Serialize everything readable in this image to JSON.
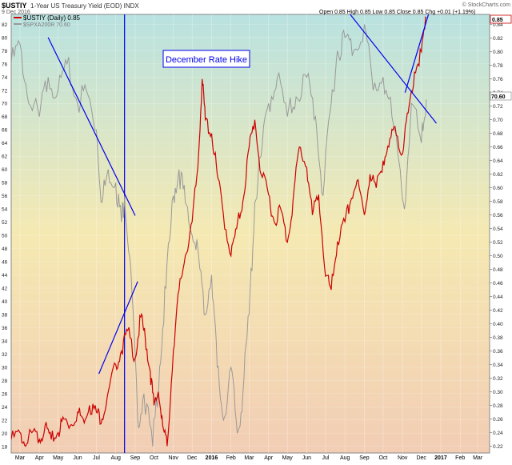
{
  "header": {
    "symbol": "$USTIY",
    "description": "1-Year US Treasury Yield (EOD) INDX",
    "date": "9 Dec 2016",
    "ohlc": "Open 0.85  High 0.85  Low 0.85  Close 0.85  Chg +0.01 (+1.19%)",
    "watermark": "© StockCharts.com"
  },
  "legend": {
    "primary": "$USTIY (Daily) 0.85",
    "secondary": "$SPXA200R 70.60"
  },
  "annotation": {
    "label": "December Rate Hike"
  },
  "price_labels": {
    "primary_last": "0.85",
    "secondary_last": "70.60"
  },
  "colors": {
    "primary_line": "#cc0000",
    "secondary_line": "#999999",
    "trendline": "#0000ee",
    "bg_top": "#b9e2e0",
    "bg_mid": "#f5e9b2",
    "bg_bottom": "#f2cdb4"
  },
  "chart_data": {
    "type": "line",
    "x_ticks": [
      "Mar",
      "Apr",
      "May",
      "Jun",
      "Jul",
      "Aug",
      "Sep",
      "Oct",
      "Nov",
      "Dec",
      "2016",
      "Feb",
      "Mar",
      "Apr",
      "May",
      "Jun",
      "Jul",
      "Aug",
      "Sep",
      "Oct",
      "Nov",
      "Dec",
      "2017",
      "Feb",
      "Mar"
    ],
    "x_range": [
      "2015-02-15",
      "2017-03-20"
    ],
    "left_axis": {
      "ticks": [
        "18",
        "20",
        "22",
        "24",
        "26",
        "28",
        "30",
        "32",
        "34",
        "36",
        "38",
        "40",
        "42",
        "44",
        "46",
        "48",
        "50",
        "52",
        "54",
        "56",
        "58",
        "60",
        "62",
        "64",
        "66",
        "68",
        "70",
        "72",
        "74",
        "76",
        "78",
        "80",
        "82"
      ],
      "range": [
        17,
        83.5
      ]
    },
    "right_axis": {
      "ticks": [
        "0.22",
        "0.24",
        "0.26",
        "0.28",
        "0.30",
        "0.32",
        "0.34",
        "0.36",
        "0.38",
        "0.40",
        "0.42",
        "0.44",
        "0.46",
        "0.48",
        "0.50",
        "0.52",
        "0.54",
        "0.56",
        "0.58",
        "0.60",
        "0.62",
        "0.64",
        "0.66",
        "0.68",
        "0.70",
        "0.72",
        "0.74",
        "0.76",
        "0.78",
        "0.80",
        "0.82",
        "0.84"
      ],
      "range": [
        0.21,
        0.855
      ]
    },
    "series": [
      {
        "name": "$USTIY (Daily) 0.85",
        "axis": "right",
        "dates": [
          "2015-02-15",
          "2015-03-01",
          "2015-03-10",
          "2015-03-20",
          "2015-04-01",
          "2015-04-10",
          "2015-04-20",
          "2015-05-01",
          "2015-05-10",
          "2015-05-20",
          "2015-06-01",
          "2015-06-10",
          "2015-06-20",
          "2015-07-01",
          "2015-07-10",
          "2015-07-20",
          "2015-08-01",
          "2015-08-10",
          "2015-08-20",
          "2015-09-01",
          "2015-09-10",
          "2015-09-17",
          "2015-09-25",
          "2015-10-01",
          "2015-10-08",
          "2015-10-15",
          "2015-10-22",
          "2015-11-01",
          "2015-11-10",
          "2015-11-20",
          "2015-12-01",
          "2015-12-10",
          "2015-12-17",
          "2015-12-22",
          "2016-01-01",
          "2016-01-10",
          "2016-01-20",
          "2016-02-01",
          "2016-02-10",
          "2016-02-20",
          "2016-03-01",
          "2016-03-10",
          "2016-03-20",
          "2016-04-01",
          "2016-04-10",
          "2016-04-20",
          "2016-05-01",
          "2016-05-10",
          "2016-05-20",
          "2016-06-01",
          "2016-06-10",
          "2016-06-20",
          "2016-07-01",
          "2016-07-10",
          "2016-07-20",
          "2016-08-01",
          "2016-08-10",
          "2016-08-20",
          "2016-09-01",
          "2016-09-10",
          "2016-09-20",
          "2016-10-01",
          "2016-10-10",
          "2016-10-20",
          "2016-11-01",
          "2016-11-10",
          "2016-11-20",
          "2016-12-01",
          "2016-12-09"
        ],
        "values": [
          0.23,
          0.24,
          0.22,
          0.24,
          0.23,
          0.25,
          0.23,
          0.24,
          0.26,
          0.25,
          0.27,
          0.26,
          0.28,
          0.27,
          0.26,
          0.3,
          0.34,
          0.36,
          0.39,
          0.35,
          0.41,
          0.38,
          0.33,
          0.28,
          0.3,
          0.25,
          0.22,
          0.36,
          0.45,
          0.5,
          0.55,
          0.63,
          0.76,
          0.7,
          0.68,
          0.62,
          0.56,
          0.5,
          0.54,
          0.58,
          0.66,
          0.7,
          0.62,
          0.59,
          0.55,
          0.57,
          0.52,
          0.58,
          0.66,
          0.63,
          0.56,
          0.59,
          0.47,
          0.45,
          0.52,
          0.55,
          0.58,
          0.61,
          0.56,
          0.62,
          0.6,
          0.64,
          0.66,
          0.69,
          0.65,
          0.71,
          0.77,
          0.8,
          0.85
        ]
      },
      {
        "name": "$SPXA200R 70.60",
        "axis": "left",
        "dates": [
          "2015-02-15",
          "2015-03-01",
          "2015-03-15",
          "2015-04-01",
          "2015-04-15",
          "2015-05-01",
          "2015-05-15",
          "2015-06-01",
          "2015-06-15",
          "2015-07-01",
          "2015-07-10",
          "2015-07-20",
          "2015-08-01",
          "2015-08-10",
          "2015-08-15",
          "2015-08-25",
          "2015-09-05",
          "2015-09-15",
          "2015-09-29",
          "2015-10-10",
          "2015-10-20",
          "2015-11-01",
          "2015-11-10",
          "2015-11-20",
          "2015-12-01",
          "2015-12-10",
          "2015-12-20",
          "2016-01-01",
          "2016-01-10",
          "2016-01-20",
          "2016-02-01",
          "2016-02-11",
          "2016-02-20",
          "2016-03-01",
          "2016-03-10",
          "2016-03-20",
          "2016-04-01",
          "2016-04-15",
          "2016-05-01",
          "2016-05-15",
          "2016-06-01",
          "2016-06-15",
          "2016-06-27",
          "2016-07-10",
          "2016-07-20",
          "2016-08-01",
          "2016-08-15",
          "2016-09-01",
          "2016-09-15",
          "2016-10-01",
          "2016-10-15",
          "2016-11-04",
          "2016-11-15",
          "2016-12-01",
          "2016-12-09"
        ],
        "values": [
          76,
          79,
          70,
          68,
          74,
          72,
          76,
          70,
          72,
          66,
          55,
          60,
          58,
          52,
          56,
          45,
          22,
          26,
          18,
          30,
          42,
          56,
          60,
          55,
          50,
          48,
          38,
          44,
          30,
          22,
          30,
          20,
          26,
          38,
          55,
          62,
          70,
          74,
          68,
          71,
          74,
          68,
          56,
          70,
          78,
          80,
          78,
          82,
          72,
          74,
          68,
          54,
          70,
          64,
          70.6
        ]
      }
    ],
    "trendlines": [
      {
        "axis": "left",
        "from": [
          "2015-04-15",
          80
        ],
        "to": [
          "2015-09-01",
          53
        ]
      },
      {
        "axis": "left",
        "from": [
          "2015-07-05",
          29
        ],
        "to": [
          "2015-09-05",
          43
        ]
      },
      {
        "axis": "left",
        "from": [
          "2016-08-01",
          84.5
        ],
        "to": [
          "2016-12-25",
          67
        ]
      },
      {
        "axis": "right",
        "from": [
          "2016-11-05",
          0.74
        ],
        "to": [
          "2016-12-14",
          0.86
        ]
      }
    ],
    "event_line": {
      "date": "2015-08-15"
    }
  }
}
